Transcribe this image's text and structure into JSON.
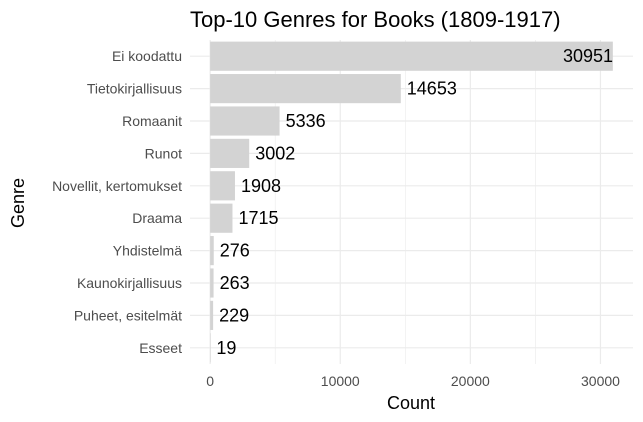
{
  "chart_data": {
    "type": "bar",
    "orientation": "horizontal",
    "title": "Top-10 Genres for Books (1809-1917)",
    "xlabel": "Count",
    "ylabel": "Genre",
    "categories": [
      "Ei koodattu",
      "Tietokirjallisuus",
      "Romaanit",
      "Runot",
      "Novellit, kertomukset",
      "Draama",
      "Yhdistelmä",
      "Kaunokirjallisuus",
      "Puheet, esitelmät",
      "Esseet"
    ],
    "values": [
      30951,
      14653,
      5336,
      3002,
      1908,
      1715,
      276,
      263,
      229,
      19
    ],
    "value_labels": [
      "30951",
      "14653",
      "5336",
      "3002",
      "1908",
      "1715",
      "276",
      "263",
      "229",
      "19"
    ],
    "x_ticks": [
      0,
      10000,
      20000,
      30000
    ],
    "x_tick_labels": [
      "0",
      "10000",
      "20000",
      "30000"
    ],
    "xlim": [
      -1548,
      32500
    ],
    "grid": true,
    "bar_color": "#d3d3d3",
    "grid_color": "#ebebeb"
  }
}
